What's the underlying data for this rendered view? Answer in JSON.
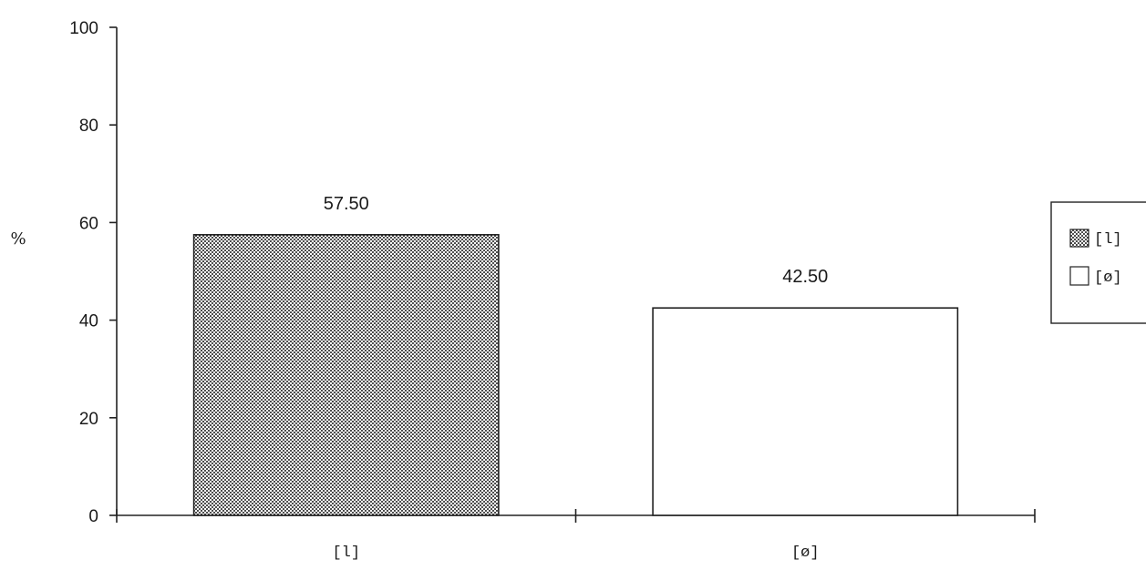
{
  "chart_data": {
    "type": "bar",
    "categories": [
      "[l]",
      "[ø]"
    ],
    "series": [
      {
        "values": [
          57.5,
          42.5
        ]
      }
    ],
    "data_labels": [
      "57.50",
      "42.50"
    ],
    "ylabel": "%",
    "xlabel": "",
    "ylim": [
      0,
      100
    ],
    "yticks": [
      0,
      20,
      40,
      60,
      80,
      100
    ],
    "ytick_labels": [
      "0",
      "20",
      "40",
      "60",
      "80",
      "100"
    ],
    "grid": false,
    "legend": {
      "placement": "right",
      "entries": [
        {
          "label": "[l]",
          "fill": "dotted"
        },
        {
          "label": "[ø]",
          "fill": "white"
        }
      ]
    },
    "bar_fills": [
      "dotted",
      "white"
    ],
    "colors": {
      "ink": "#222222",
      "dots": "#2a2a2a",
      "background": "#ffffff"
    }
  }
}
